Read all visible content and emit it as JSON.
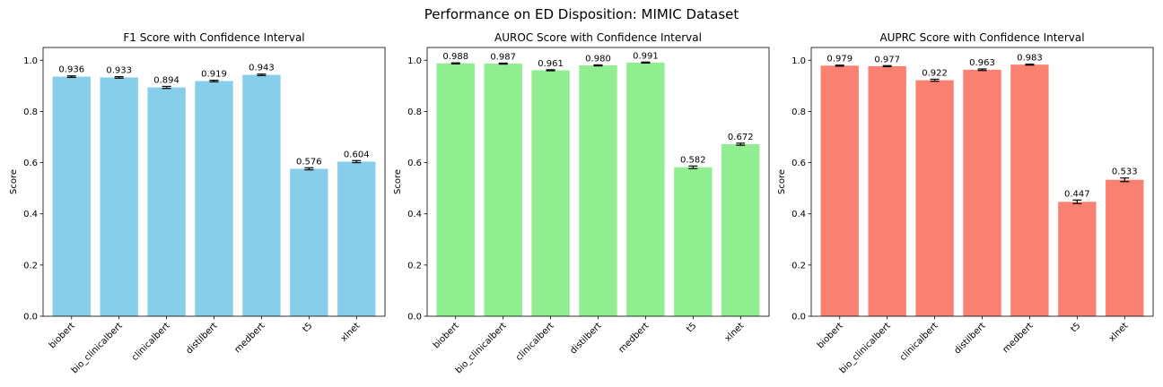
{
  "figure": {
    "title": "Performance on ED Disposition: MIMIC Dataset"
  },
  "chart_data": [
    {
      "type": "bar",
      "title": "F1 Score with Confidence Interval",
      "xlabel": "",
      "ylabel": "Score",
      "ylim": [
        0,
        1.05
      ],
      "yticks": [
        "0.0",
        "0.2",
        "0.4",
        "0.6",
        "0.8",
        "1.0"
      ],
      "categories": [
        "biobert",
        "bio_clinicalbert",
        "clinicalbert",
        "distilbert",
        "medbert",
        "t5",
        "xlnet"
      ],
      "values": [
        0.936,
        0.933,
        0.894,
        0.919,
        0.943,
        0.576,
        0.604
      ],
      "labels": [
        "0.936",
        "0.933",
        "0.894",
        "0.919",
        "0.943",
        "0.576",
        "0.604"
      ],
      "errors": [
        0.003,
        0.003,
        0.004,
        0.003,
        0.003,
        0.004,
        0.004
      ],
      "color": "#87ceeb",
      "grid": false
    },
    {
      "type": "bar",
      "title": "AUROC Score with Confidence Interval",
      "xlabel": "",
      "ylabel": "Score",
      "ylim": [
        0,
        1.05
      ],
      "yticks": [
        "0.0",
        "0.2",
        "0.4",
        "0.6",
        "0.8",
        "1.0"
      ],
      "categories": [
        "biobert",
        "bio_clinicalbert",
        "clinicalbert",
        "distilbert",
        "medbert",
        "t5",
        "xlnet"
      ],
      "values": [
        0.988,
        0.987,
        0.961,
        0.98,
        0.991,
        0.582,
        0.672
      ],
      "labels": [
        "0.988",
        "0.987",
        "0.961",
        "0.980",
        "0.991",
        "0.582",
        "0.672"
      ],
      "errors": [
        0.002,
        0.002,
        0.002,
        0.002,
        0.002,
        0.005,
        0.004
      ],
      "color": "#90ee90",
      "grid": false
    },
    {
      "type": "bar",
      "title": "AUPRC Score with Confidence Interval",
      "xlabel": "",
      "ylabel": "Score",
      "ylim": [
        0,
        1.05
      ],
      "yticks": [
        "0.0",
        "0.2",
        "0.4",
        "0.6",
        "0.8",
        "1.0"
      ],
      "categories": [
        "biobert",
        "bio_clinicalbert",
        "clinicalbert",
        "distilbert",
        "medbert",
        "t5",
        "xlnet"
      ],
      "values": [
        0.979,
        0.977,
        0.922,
        0.963,
        0.983,
        0.447,
        0.533
      ],
      "labels": [
        "0.979",
        "0.977",
        "0.922",
        "0.963",
        "0.983",
        "0.447",
        "0.533"
      ],
      "errors": [
        0.002,
        0.002,
        0.004,
        0.003,
        0.002,
        0.007,
        0.007
      ],
      "color": "#fa8072",
      "grid": false
    }
  ]
}
